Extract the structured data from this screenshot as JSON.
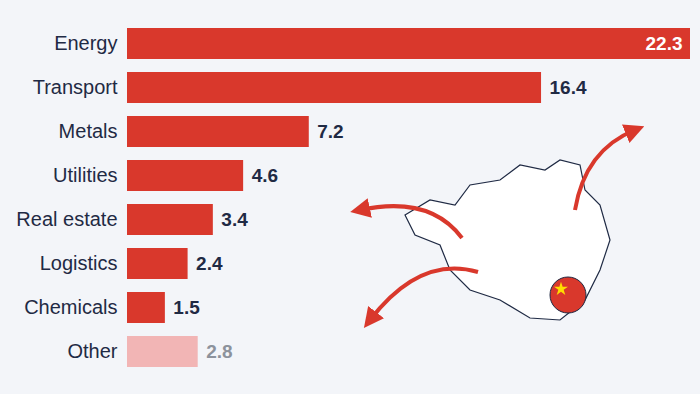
{
  "chart_data": {
    "type": "bar",
    "orientation": "horizontal",
    "categories": [
      "Energy",
      "Transport",
      "Metals",
      "Utilities",
      "Real estate",
      "Logistics",
      "Chemicals",
      "Other"
    ],
    "values": [
      22.3,
      16.4,
      7.2,
      4.6,
      3.4,
      2.4,
      1.5,
      2.8
    ],
    "colors": [
      "#d9382c",
      "#d9382c",
      "#d9382c",
      "#d9382c",
      "#d9382c",
      "#d9382c",
      "#d9382c",
      "#f2b5b5"
    ],
    "xlim": [
      0,
      22.3
    ],
    "data_labels": true,
    "tick_labels": "y"
  }
}
